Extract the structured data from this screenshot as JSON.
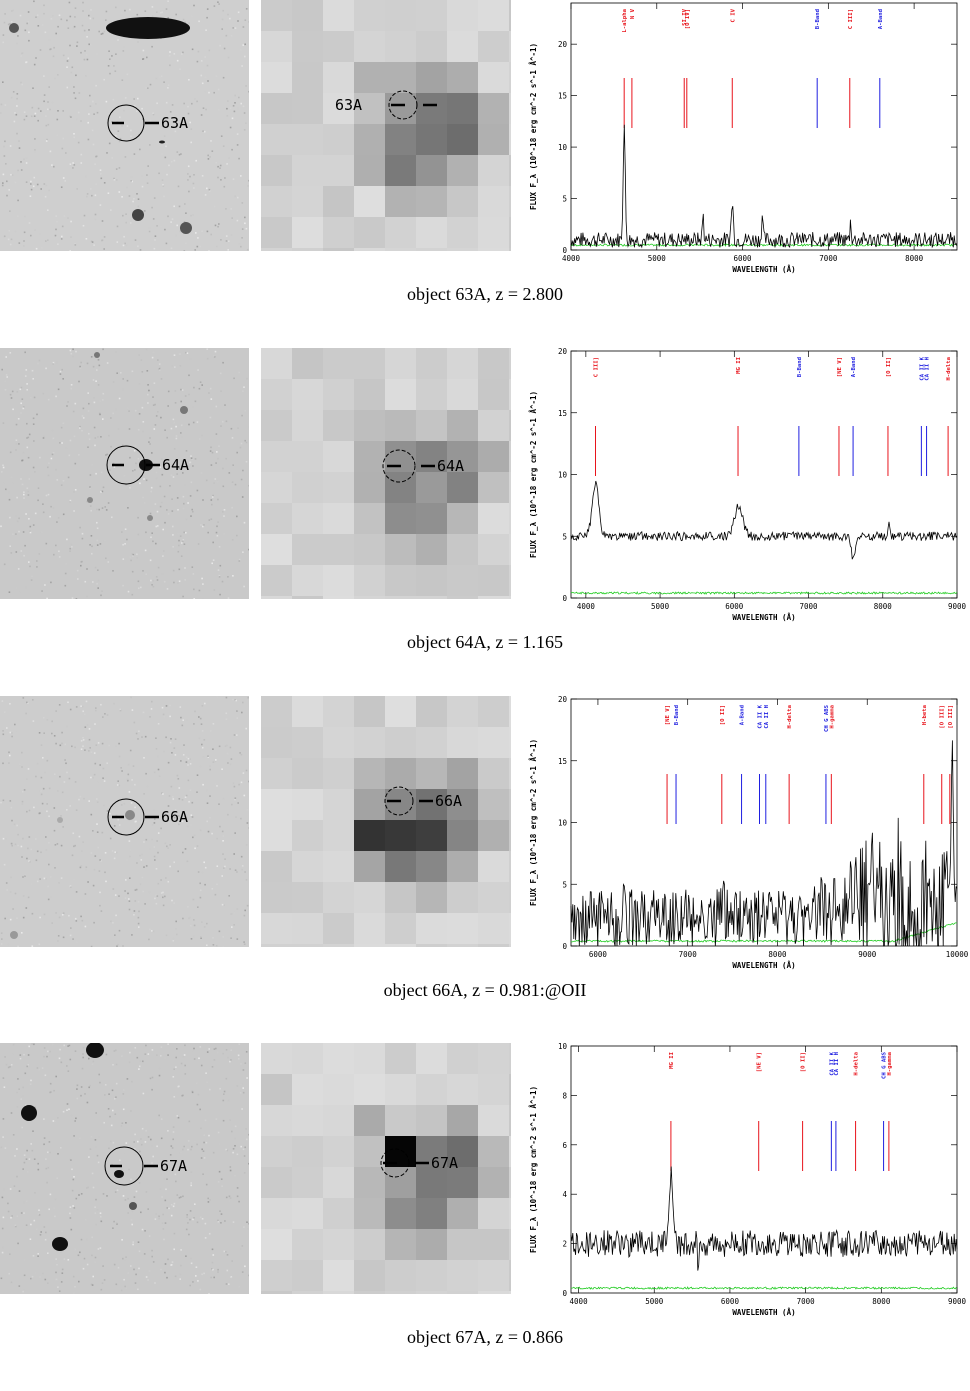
{
  "panels": [
    {
      "id": "63A",
      "caption": "object 63A, z = 2.800",
      "marker_label": "63A",
      "xray_label": "63A",
      "chart_data": {
        "type": "line",
        "xlabel": "WAVELENGTH (Å)",
        "ylabel": "FLUX F_λ (10^-18 erg cm^-2 s^-1 Å^-1)",
        "xlim": [
          4000,
          8500
        ],
        "ylim": [
          0,
          24
        ],
        "xticks": [
          4000,
          5000,
          6000,
          7000,
          8000
        ],
        "yticks": [
          0,
          5,
          10,
          15,
          20
        ],
        "continuum": 1,
        "noise": 0.25,
        "emission": [
          {
            "x": 4620,
            "peak": 11.2,
            "width": 12
          },
          {
            "x": 5540,
            "peak": 2.5,
            "width": 8
          },
          {
            "x": 5880,
            "peak": 3.5,
            "width": 12
          },
          {
            "x": 6230,
            "peak": 2.5,
            "width": 8
          },
          {
            "x": 7260,
            "peak": 1.8,
            "width": 8
          }
        ],
        "lines": [
          {
            "x": 4620,
            "label": "L-alpha",
            "color": "#e8141c"
          },
          {
            "x": 4710,
            "label": "N V",
            "color": "#e8141c"
          },
          {
            "x": 5320,
            "label": "SI IV",
            "color": "#e8141c"
          },
          {
            "x": 5350,
            "label": "[O IV]",
            "color": "#e8141c"
          },
          {
            "x": 5880,
            "label": "C IV",
            "color": "#e8141c"
          },
          {
            "x": 6870,
            "label": "B-Band",
            "color": "#1f1fe0"
          },
          {
            "x": 7250,
            "label": "C III]",
            "color": "#e8141c"
          },
          {
            "x": 7600,
            "label": "A-Band",
            "color": "#1f1fe0"
          }
        ],
        "series": [
          {
            "name": "",
            "color": "#000000"
          },
          {
            "name": "",
            "color": "#22cc22"
          }
        ]
      }
    },
    {
      "id": "64A",
      "caption": "object 64A, z = 1.165",
      "marker_label": "64A",
      "xray_label": "64A",
      "chart_data": {
        "type": "line",
        "xlabel": "WAVELENGTH (Å)",
        "ylabel": "FLUX F_λ (10^-18 erg cm^-2 s^-1 Å^-1)",
        "xlim": [
          3800,
          9000
        ],
        "ylim": [
          0,
          20
        ],
        "xticks": [
          4000,
          5000,
          6000,
          7000,
          8000,
          9000
        ],
        "yticks": [
          0,
          5,
          10,
          15,
          20
        ],
        "continuum": 5,
        "noise": 0.12,
        "emission": [
          {
            "x": 4130,
            "peak": 4.2,
            "width": 45
          },
          {
            "x": 6060,
            "peak": 2.5,
            "width": 55
          },
          {
            "x": 7600,
            "peak": -1.8,
            "width": 25
          },
          {
            "x": 8080,
            "peak": 1.3,
            "width": 10
          }
        ],
        "lines": [
          {
            "x": 4130,
            "label": "C III]",
            "color": "#e8141c"
          },
          {
            "x": 6050,
            "label": "MG II",
            "color": "#e8141c"
          },
          {
            "x": 6870,
            "label": "B-Band",
            "color": "#1f1fe0"
          },
          {
            "x": 7410,
            "label": "[NE V]",
            "color": "#e8141c"
          },
          {
            "x": 7600,
            "label": "A-Band",
            "color": "#1f1fe0"
          },
          {
            "x": 8070,
            "label": "[O II]",
            "color": "#e8141c"
          },
          {
            "x": 8520,
            "label": "CA II K",
            "color": "#1f1fe0"
          },
          {
            "x": 8590,
            "label": "CA II H",
            "color": "#1f1fe0"
          },
          {
            "x": 8880,
            "label": "H-delta",
            "color": "#e8141c"
          }
        ],
        "series": [
          {
            "name": "",
            "color": "#000000"
          },
          {
            "name": "",
            "color": "#22cc22"
          }
        ]
      }
    },
    {
      "id": "66A",
      "caption": "object 66A, z = 0.981:@OII",
      "marker_label": "66A",
      "xray_label": "66A",
      "chart_data": {
        "type": "line",
        "xlabel": "WAVELENGTH (Å)",
        "ylabel": "FLUX F_λ (10^-18 erg cm^-2 s^-1 Å^-1)",
        "xlim": [
          5700,
          10000
        ],
        "ylim": [
          0,
          20
        ],
        "xticks": [
          6000,
          7000,
          8000,
          9000,
          10000
        ],
        "yticks": [
          0,
          5,
          10,
          15,
          20
        ],
        "continuum": 2.2,
        "noise": 0.8,
        "emission": [
          {
            "x": 6290,
            "peak": 3.5,
            "width": 8
          },
          {
            "x": 7390,
            "peak": 3.0,
            "width": 10
          },
          {
            "x": 9940,
            "peak": 12,
            "width": 15
          }
        ],
        "lines": [
          {
            "x": 6770,
            "label": "[NE V]",
            "color": "#e8141c"
          },
          {
            "x": 6870,
            "label": "B-Band",
            "color": "#1f1fe0"
          },
          {
            "x": 7380,
            "label": "[O II]",
            "color": "#e8141c"
          },
          {
            "x": 7600,
            "label": "A-Band",
            "color": "#1f1fe0"
          },
          {
            "x": 7800,
            "label": "CA II K",
            "color": "#1f1fe0"
          },
          {
            "x": 7870,
            "label": "CA II H",
            "color": "#1f1fe0"
          },
          {
            "x": 8130,
            "label": "H-delta",
            "color": "#e8141c"
          },
          {
            "x": 8540,
            "label": "CH G ABS",
            "color": "#1f1fe0"
          },
          {
            "x": 8600,
            "label": "H-gamma",
            "color": "#e8141c"
          },
          {
            "x": 9630,
            "label": "H-beta",
            "color": "#e8141c"
          },
          {
            "x": 9830,
            "label": "[O III]",
            "color": "#e8141c"
          },
          {
            "x": 9920,
            "label": "[O III]",
            "color": "#e8141c"
          }
        ],
        "series": [
          {
            "name": "",
            "color": "#000000"
          },
          {
            "name": "",
            "color": "#22cc22"
          }
        ]
      }
    },
    {
      "id": "67A",
      "caption": "object 67A, z = 0.866",
      "marker_label": "67A",
      "xray_label": "67A",
      "chart_data": {
        "type": "line",
        "xlabel": "WAVELENGTH (Å)",
        "ylabel": "FLUX F_λ (10^-18 erg cm^-2 s^-1 Å^-1)",
        "xlim": [
          3900,
          9000
        ],
        "ylim": [
          0,
          10
        ],
        "xticks": [
          4000,
          5000,
          6000,
          7000,
          8000,
          9000
        ],
        "yticks": [
          0,
          2,
          4,
          6,
          8,
          10
        ],
        "continuum": 2,
        "noise": 0.18,
        "emission": [
          {
            "x": 5220,
            "peak": 2.6,
            "width": 30
          },
          {
            "x": 5580,
            "peak": -1.0,
            "width": 8
          }
        ],
        "lines": [
          {
            "x": 5220,
            "label": "MG II",
            "color": "#e8141c"
          },
          {
            "x": 6380,
            "label": "[NE V]",
            "color": "#e8141c"
          },
          {
            "x": 6960,
            "label": "[O II]",
            "color": "#e8141c"
          },
          {
            "x": 7340,
            "label": "CA II K",
            "color": "#1f1fe0"
          },
          {
            "x": 7400,
            "label": "CA II H",
            "color": "#1f1fe0"
          },
          {
            "x": 7660,
            "label": "H-delta",
            "color": "#e8141c"
          },
          {
            "x": 8030,
            "label": "CH G ABS",
            "color": "#1f1fe0"
          },
          {
            "x": 8100,
            "label": "H-gamma",
            "color": "#e8141c"
          }
        ],
        "series": [
          {
            "name": "",
            "color": "#000000"
          },
          {
            "name": "",
            "color": "#22cc22"
          }
        ]
      }
    }
  ]
}
